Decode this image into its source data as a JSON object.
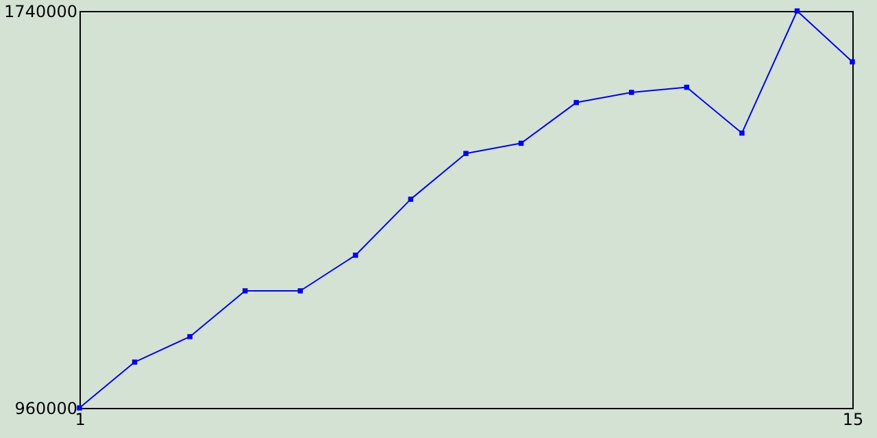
{
  "chart_data": {
    "type": "line",
    "x": [
      1,
      2,
      3,
      4,
      5,
      6,
      7,
      8,
      9,
      10,
      11,
      12,
      13,
      14,
      15
    ],
    "series": [
      {
        "color": "#0000ff",
        "values": [
          960000,
          1050000,
          1100000,
          1190000,
          1190000,
          1260000,
          1370000,
          1460000,
          1480000,
          1560000,
          1580000,
          1590000,
          1500000,
          1740000,
          1640000
        ]
      }
    ],
    "xlim": [
      1,
      15
    ],
    "xticks": [
      1,
      15
    ],
    "ylim": [
      960000,
      1740000
    ],
    "yticks": [
      960000,
      1740000
    ],
    "grid": false,
    "marker": "square",
    "line_style": "solid"
  }
}
